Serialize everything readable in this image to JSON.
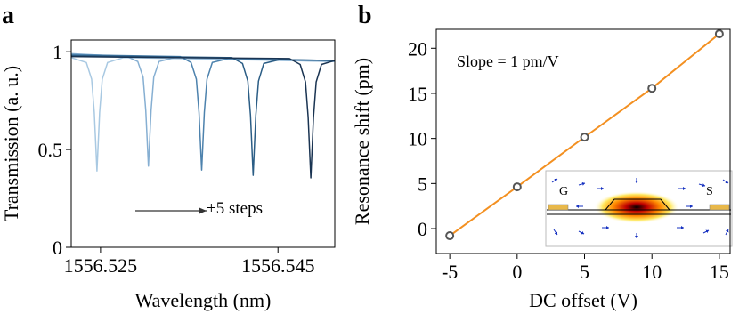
{
  "panel_labels": [
    "a",
    "b"
  ],
  "chart_data": [
    {
      "type": "line",
      "xlabel": "Wavelength (nm)",
      "ylabel": "Transmission (a. u.)",
      "xlim": [
        1556.5217,
        1556.5514
      ],
      "xticks": [
        1556.525,
        1556.545
      ],
      "ylim": [
        0,
        1.06
      ],
      "yticks": [
        0,
        0.5,
        1
      ],
      "annotation": "+5 steps",
      "series": [
        {
          "color": "#a9c9e2",
          "x": [
            1556.5217,
            1556.5234,
            1556.524,
            1556.5243,
            1556.5246,
            1556.5249,
            1556.5252,
            1556.5258,
            1556.5276,
            1556.54,
            1556.5514
          ],
          "values": [
            0.97,
            0.945,
            0.86,
            0.69,
            0.39,
            0.69,
            0.86,
            0.945,
            0.97,
            0.96,
            0.95
          ]
        },
        {
          "color": "#86afd2",
          "x": [
            1556.5217,
            1556.528,
            1556.5292,
            1556.5298,
            1556.5301,
            1556.5304,
            1556.5307,
            1556.531,
            1556.5316,
            1556.5334,
            1556.5514
          ],
          "values": [
            0.99,
            0.975,
            0.95,
            0.87,
            0.7,
            0.415,
            0.7,
            0.87,
            0.95,
            0.97,
            0.95
          ]
        },
        {
          "color": "#4d82ad",
          "x": [
            1556.5217,
            1556.534,
            1556.5352,
            1556.5358,
            1556.5361,
            1556.5364,
            1556.5367,
            1556.537,
            1556.5376,
            1556.5394,
            1556.5514
          ],
          "values": [
            0.985,
            0.975,
            0.945,
            0.86,
            0.69,
            0.395,
            0.69,
            0.86,
            0.945,
            0.965,
            0.955
          ]
        },
        {
          "color": "#2b5d85",
          "x": [
            1556.5217,
            1556.5398,
            1556.541,
            1556.5416,
            1556.5419,
            1556.5422,
            1556.5425,
            1556.5428,
            1556.5434,
            1556.5452,
            1556.5514
          ],
          "values": [
            0.98,
            0.97,
            0.94,
            0.85,
            0.675,
            0.368,
            0.675,
            0.85,
            0.94,
            0.96,
            0.955
          ]
        },
        {
          "color": "#1a3452",
          "x": [
            1556.5217,
            1556.5463,
            1556.5475,
            1556.5481,
            1556.5484,
            1556.5487,
            1556.549,
            1556.5493,
            1556.5499,
            1556.5514
          ],
          "values": [
            0.975,
            0.965,
            0.935,
            0.845,
            0.665,
            0.355,
            0.665,
            0.845,
            0.935,
            0.955
          ]
        }
      ]
    },
    {
      "type": "scatter",
      "xlabel": "DC offset (V)",
      "ylabel": "Resonance shift (pm)",
      "xlim": [
        -6,
        15.8
      ],
      "xticks": [
        -5,
        0,
        5,
        10,
        15
      ],
      "ylim": [
        -2.76,
        22.1
      ],
      "yticks": [
        0,
        5,
        10,
        15,
        20
      ],
      "annotation": "Slope = 1 pm/V",
      "inset_labels": [
        "G",
        "S"
      ],
      "line_color": "#f39021",
      "marker_color": "#555555",
      "x": [
        -5,
        0,
        5,
        10,
        15
      ],
      "values": [
        -0.79,
        4.63,
        10.15,
        15.57,
        21.6
      ]
    }
  ]
}
